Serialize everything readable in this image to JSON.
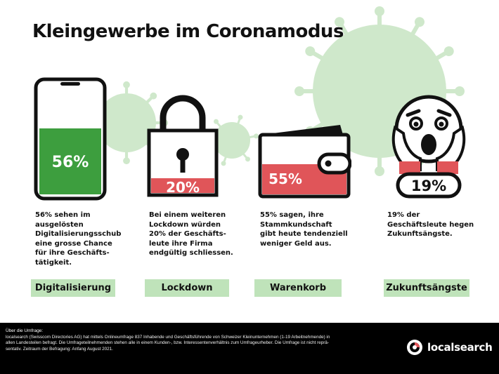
{
  "title": "Kleingewerbe im Coronamodus",
  "colors": {
    "green": "#3d9e3e",
    "light_green": "#bfe3ba",
    "virus_green": "#cfe8cb",
    "red": "#e05559",
    "black": "#111111"
  },
  "items": [
    {
      "icon": "smartphone-icon",
      "value": "56%",
      "fill_fraction": 0.56,
      "description": [
        "56% sehen im",
        "ausgelösten",
        "Digitalisierungsschub",
        "eine grosse Chance",
        "für ihre Geschäfts-",
        "tätigkeit."
      ],
      "category": "Digitalisierung"
    },
    {
      "icon": "padlock-icon",
      "value": "20%",
      "fill_fraction": 0.2,
      "description": [
        "Bei einem weiteren",
        "Lockdown würden",
        "20% der Geschäfts-",
        "leute ihre Firma",
        "endgültig schliessen."
      ],
      "category": "Lockdown"
    },
    {
      "icon": "wallet-icon",
      "value": "55%",
      "fill_fraction": 0.55,
      "description": [
        "55% sagen, ihre",
        "Stammkundschaft",
        "gibt heute tendenziell",
        "weniger Geld aus."
      ],
      "category": "Warenkorb"
    },
    {
      "icon": "screaming-face-icon",
      "value": "19%",
      "fill_fraction": 0.19,
      "description": [
        "19% der",
        "Geschäftsleute hegen",
        "Zukunftsängste."
      ],
      "category": "Zukunftsängste"
    }
  ],
  "footer": {
    "label": "Über die Umfrage:",
    "lines": [
      "localsearch (Swisscom Directories AG) hat mittels Onlineumfrage 837 Inhabende und Geschäftsführende von Schweizer Kleinunternehmen (1-19 Arbeitnehmende) in",
      "allen Landesteilen befragt. Die Umfrageteilnehmenden stehen alle in einem Kunden-, bzw. Interessentenverhältnis zum Umfrageurheber. Die Umfrage ist nicht reprä-",
      "sentativ. Zeitraum der Befragung: Anfang August 2021."
    ],
    "logo_text": "localsearch",
    "logo_icon": "localsearch-logo-icon"
  }
}
